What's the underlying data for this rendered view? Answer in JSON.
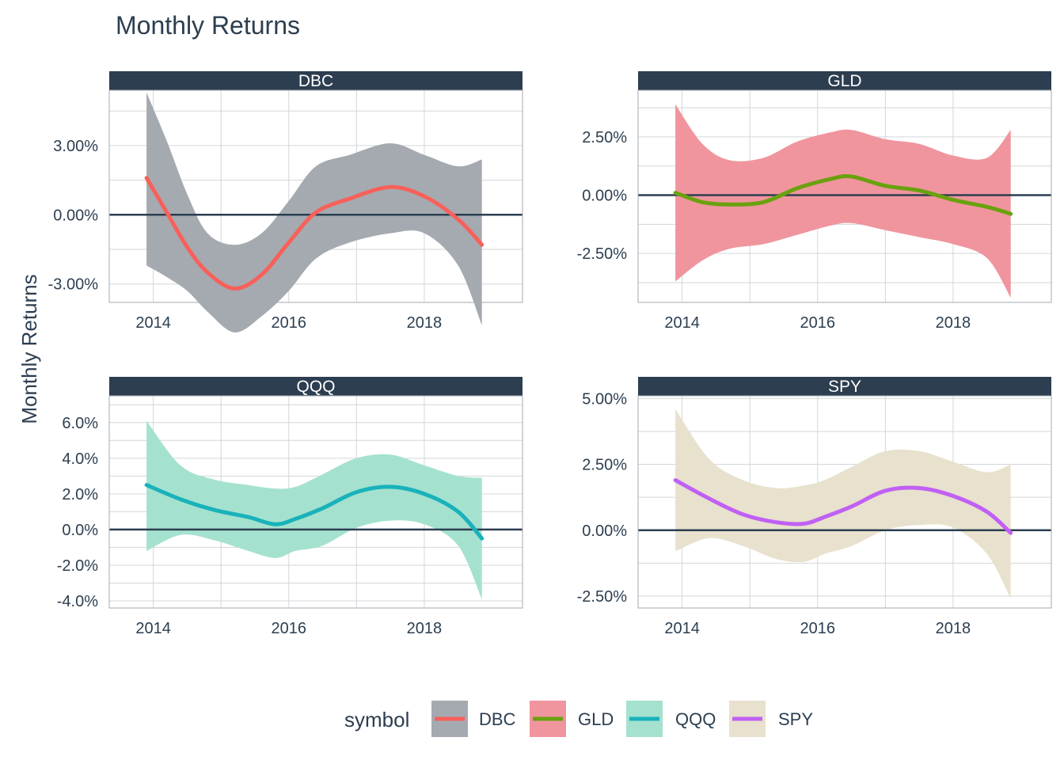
{
  "chart_data": {
    "type": "line",
    "title": "Monthly Returns",
    "ylabel": "Monthly Returns",
    "xlabel": "",
    "legend": {
      "title": "symbol",
      "placement": "bottom"
    },
    "grid": true,
    "x_ticks": [
      "2014",
      "2016",
      "2018"
    ],
    "panels": [
      {
        "name": "DBC",
        "line_color": "#f8605a",
        "band_color": "#a5aab1",
        "ylim": [
          -3.8,
          5.4
        ],
        "y_ticks": [
          {
            "value": 3.0,
            "label": "3.00%"
          },
          {
            "value": 0.0,
            "label": "0.00%"
          },
          {
            "value": -3.0,
            "label": "-3.00%"
          }
        ],
        "points": [
          {
            "x": 2013.9,
            "y": 1.6,
            "lo": -2.2,
            "hi": 5.3
          },
          {
            "x": 2014.2,
            "y": 0.1,
            "lo": -2.7,
            "hi": 3.2
          },
          {
            "x": 2014.5,
            "y": -1.4,
            "lo": -3.3,
            "hi": 0.9
          },
          {
            "x": 2014.8,
            "y": -2.5,
            "lo": -4.2,
            "hi": -0.8
          },
          {
            "x": 2015.2,
            "y": -3.2,
            "lo": -5.1,
            "hi": -1.3
          },
          {
            "x": 2015.6,
            "y": -2.6,
            "lo": -4.4,
            "hi": -0.8
          },
          {
            "x": 2016.0,
            "y": -1.2,
            "lo": -3.3,
            "hi": 0.6
          },
          {
            "x": 2016.4,
            "y": 0.1,
            "lo": -1.9,
            "hi": 2.1
          },
          {
            "x": 2016.9,
            "y": 0.7,
            "lo": -1.2,
            "hi": 2.6
          },
          {
            "x": 2017.5,
            "y": 1.2,
            "lo": -0.8,
            "hi": 3.1
          },
          {
            "x": 2018.0,
            "y": 0.8,
            "lo": -0.8,
            "hi": 2.6
          },
          {
            "x": 2018.5,
            "y": -0.2,
            "lo": -2.2,
            "hi": 2.1
          },
          {
            "x": 2018.85,
            "y": -1.3,
            "lo": -4.8,
            "hi": 2.4
          }
        ]
      },
      {
        "name": "GLD",
        "line_color": "#6aa10f",
        "band_color": "#f0959e",
        "ylim": [
          -4.6,
          4.5
        ],
        "y_ticks": [
          {
            "value": 2.5,
            "label": "2.50%"
          },
          {
            "value": 0.0,
            "label": "0.00%"
          },
          {
            "value": -2.5,
            "label": "-2.50%"
          }
        ],
        "points": [
          {
            "x": 2013.9,
            "y": 0.1,
            "lo": -3.7,
            "hi": 3.9
          },
          {
            "x": 2014.3,
            "y": -0.3,
            "lo": -2.8,
            "hi": 2.2
          },
          {
            "x": 2014.7,
            "y": -0.4,
            "lo": -2.3,
            "hi": 1.5
          },
          {
            "x": 2015.2,
            "y": -0.3,
            "lo": -2.1,
            "hi": 1.6
          },
          {
            "x": 2015.7,
            "y": 0.3,
            "lo": -1.7,
            "hi": 2.3
          },
          {
            "x": 2016.2,
            "y": 0.7,
            "lo": -1.3,
            "hi": 2.7
          },
          {
            "x": 2016.5,
            "y": 0.8,
            "lo": -1.2,
            "hi": 2.8
          },
          {
            "x": 2017.0,
            "y": 0.4,
            "lo": -1.5,
            "hi": 2.4
          },
          {
            "x": 2017.5,
            "y": 0.2,
            "lo": -1.8,
            "hi": 2.2
          },
          {
            "x": 2018.0,
            "y": -0.2,
            "lo": -2.1,
            "hi": 1.7
          },
          {
            "x": 2018.5,
            "y": -0.5,
            "lo": -2.7,
            "hi": 1.6
          },
          {
            "x": 2018.85,
            "y": -0.8,
            "lo": -4.4,
            "hi": 2.8
          }
        ]
      },
      {
        "name": "QQQ",
        "line_color": "#19b2bb",
        "band_color": "#a5e1cf",
        "ylim": [
          -4.4,
          7.5
        ],
        "y_ticks": [
          {
            "value": 6.0,
            "label": "6.0%"
          },
          {
            "value": 4.0,
            "label": "4.0%"
          },
          {
            "value": 2.0,
            "label": "2.0%"
          },
          {
            "value": 0.0,
            "label": "0.0%"
          },
          {
            "value": -2.0,
            "label": "-2.0%"
          },
          {
            "value": -4.0,
            "label": "-4.0%"
          }
        ],
        "points": [
          {
            "x": 2013.9,
            "y": 2.5,
            "lo": -1.2,
            "hi": 6.1
          },
          {
            "x": 2014.4,
            "y": 1.7,
            "lo": -0.3,
            "hi": 3.6
          },
          {
            "x": 2014.9,
            "y": 1.1,
            "lo": -0.6,
            "hi": 2.8
          },
          {
            "x": 2015.4,
            "y": 0.7,
            "lo": -1.2,
            "hi": 2.5
          },
          {
            "x": 2015.8,
            "y": 0.3,
            "lo": -1.6,
            "hi": 2.3
          },
          {
            "x": 2016.1,
            "y": 0.6,
            "lo": -1.2,
            "hi": 2.4
          },
          {
            "x": 2016.5,
            "y": 1.2,
            "lo": -0.9,
            "hi": 3.1
          },
          {
            "x": 2017.0,
            "y": 2.1,
            "lo": 0.1,
            "hi": 4.0
          },
          {
            "x": 2017.5,
            "y": 2.4,
            "lo": 0.5,
            "hi": 4.2
          },
          {
            "x": 2018.0,
            "y": 2.0,
            "lo": 0.3,
            "hi": 3.6
          },
          {
            "x": 2018.5,
            "y": 1.0,
            "lo": -0.9,
            "hi": 3.0
          },
          {
            "x": 2018.85,
            "y": -0.5,
            "lo": -3.9,
            "hi": 2.9
          }
        ]
      },
      {
        "name": "SPY",
        "line_color": "#c060f4",
        "band_color": "#e8e1cd",
        "ylim": [
          -2.95,
          5.1
        ],
        "y_ticks": [
          {
            "value": 5.0,
            "label": "5.00%"
          },
          {
            "value": 2.5,
            "label": "2.50%"
          },
          {
            "value": 0.0,
            "label": "0.00%"
          },
          {
            "value": -2.5,
            "label": "-2.50%"
          }
        ],
        "points": [
          {
            "x": 2013.9,
            "y": 1.9,
            "lo": -0.8,
            "hi": 4.6
          },
          {
            "x": 2014.4,
            "y": 1.2,
            "lo": -0.3,
            "hi": 2.7
          },
          {
            "x": 2014.9,
            "y": 0.6,
            "lo": -0.6,
            "hi": 1.9
          },
          {
            "x": 2015.4,
            "y": 0.3,
            "lo": -1.1,
            "hi": 1.6
          },
          {
            "x": 2015.8,
            "y": 0.25,
            "lo": -1.2,
            "hi": 1.7
          },
          {
            "x": 2016.1,
            "y": 0.5,
            "lo": -0.9,
            "hi": 1.9
          },
          {
            "x": 2016.5,
            "y": 0.9,
            "lo": -0.6,
            "hi": 2.4
          },
          {
            "x": 2017.0,
            "y": 1.5,
            "lo": 0.0,
            "hi": 3.0
          },
          {
            "x": 2017.5,
            "y": 1.6,
            "lo": 0.2,
            "hi": 3.0
          },
          {
            "x": 2018.0,
            "y": 1.3,
            "lo": 0.1,
            "hi": 2.6
          },
          {
            "x": 2018.5,
            "y": 0.7,
            "lo": -0.9,
            "hi": 2.2
          },
          {
            "x": 2018.85,
            "y": -0.1,
            "lo": -2.6,
            "hi": 2.5
          }
        ]
      }
    ]
  }
}
